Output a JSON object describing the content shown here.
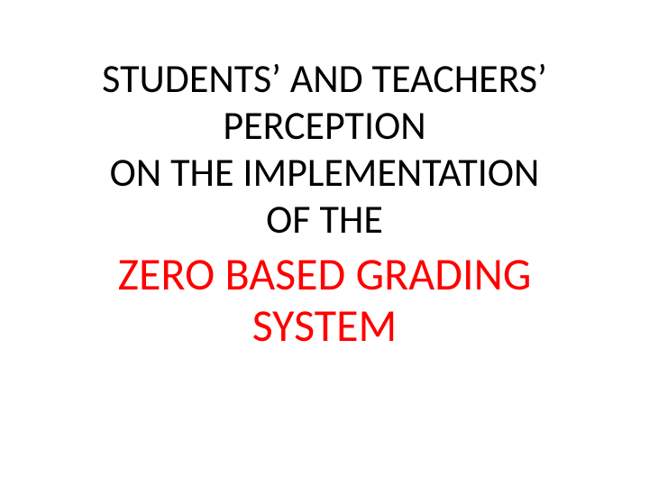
{
  "slide": {
    "upper": {
      "l1": "STUDENTS’ AND TEACHERS’",
      "l2": "PERCEPTION",
      "l3": "ON THE IMPLEMENTATION",
      "l4": "OF THE",
      "fontsize": 44,
      "color": "#000000",
      "weight": 400
    },
    "lower": {
      "l1": "ZERO BASED GRADING",
      "l2": "SYSTEM",
      "fontsize": 50,
      "color": "#ff0000",
      "weight": 400
    },
    "background_color": "#ffffff",
    "font_family": "Calibri"
  }
}
